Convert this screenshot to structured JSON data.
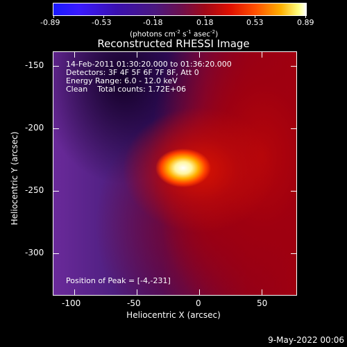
{
  "colorbar": {
    "ticks": [
      "-0.89",
      "-0.53",
      "-0.18",
      "0.18",
      "0.53",
      "0.89"
    ],
    "unit_parts": [
      "(photons cm",
      "-2",
      " s",
      "-1",
      " asec",
      "-2",
      ")"
    ]
  },
  "image": {
    "title": "Reconstructed RHESSI Image",
    "info_lines": [
      "14-Feb-2011 01:30:20.000 to 01:36:20.000",
      "Detectors: 3F 4F 5F 6F 7F 8F, Att 0",
      "Energy Range: 6.0 - 12.0 keV",
      "Clean    Total counts: 1.72E+06"
    ],
    "peak_text": "Position of Peak = [-4,-231]"
  },
  "axes": {
    "xlabel": "Heliocentric X (arcsec)",
    "ylabel": "Heliocentric Y (arcsec)",
    "x_ticks": [
      "-100",
      "-50",
      "0",
      "50"
    ],
    "y_ticks": [
      "-150",
      "-200",
      "-250",
      "-300"
    ]
  },
  "footer": {
    "date": "9-May-2022 00:06"
  }
}
